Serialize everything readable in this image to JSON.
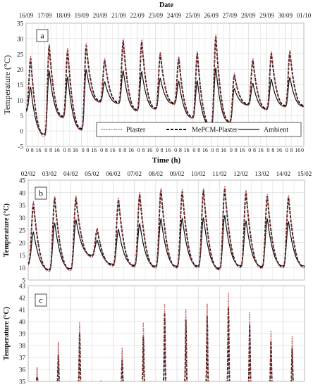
{
  "chart_data": [
    {
      "id": "a",
      "type": "line",
      "panel_label": "a",
      "title": "",
      "top_label": "Date",
      "xlabel": "Time (h)",
      "ylabel": "Temperature  (°C)",
      "ylim": [
        -5,
        35
      ],
      "yticks": [
        -5,
        0,
        5,
        10,
        15,
        20,
        25,
        30,
        35
      ],
      "date_ticks": [
        "16/09",
        "17/09",
        "18/09",
        "19/09",
        "20/09",
        "21/09",
        "22/09",
        "23/09",
        "24/09",
        "25/09",
        "26/09",
        "27/09",
        "28/09",
        "29/09",
        "30/09",
        "01/10"
      ],
      "hour_ticks": [
        "0",
        "8",
        "16"
      ],
      "grid": true,
      "legend_position": "lower-right",
      "series": [
        {
          "name": "Plaster",
          "style": "dotted",
          "color": "#c0504d",
          "daily_max": [
            24.2,
            28.3,
            26.9,
            28.4,
            23.5,
            29.9,
            29.7,
            25.7,
            24.2,
            25.9,
            31.3,
            18.8,
            23.6,
            25.9,
            26.3
          ],
          "daily_min": [
            6.2,
            -1.8,
            4.2,
            0.2,
            9.3,
            8.8,
            6.4,
            7.0,
            8.6,
            4.1,
            1.3,
            2.6,
            8.3,
            6.8,
            7.8
          ]
        },
        {
          "name": "MePCM-Plaster",
          "style": "dashed",
          "color": "#111111",
          "daily_max": [
            23.5,
            27.6,
            26.2,
            27.7,
            23.0,
            29.2,
            29.0,
            25.0,
            23.5,
            25.2,
            30.6,
            18.2,
            23.0,
            25.2,
            25.6
          ],
          "daily_min": [
            6.8,
            -1.2,
            4.8,
            0.8,
            9.8,
            9.3,
            6.9,
            7.5,
            9.1,
            4.6,
            1.8,
            3.1,
            8.8,
            7.3,
            8.3
          ]
        },
        {
          "name": "Ambient",
          "style": "solid",
          "color": "#111111",
          "daily_max": [
            14.2,
            19.5,
            17.6,
            19.9,
            16.0,
            19.6,
            19.3,
            17.1,
            16.2,
            16.3,
            20.5,
            13.8,
            15.5,
            16.8,
            17.4
          ],
          "daily_min": [
            6.5,
            -1.0,
            4.5,
            0.5,
            9.5,
            9.0,
            6.7,
            7.2,
            8.8,
            4.3,
            1.6,
            2.9,
            8.5,
            7.1,
            8.0
          ]
        }
      ]
    },
    {
      "id": "b",
      "type": "line",
      "panel_label": "b",
      "title": "",
      "xlabel": "",
      "ylabel": "Temperature (°C)",
      "ylim": [
        5,
        45
      ],
      "yticks": [
        5,
        10,
        15,
        20,
        25,
        30,
        35,
        40,
        45
      ],
      "date_ticks": [
        "02/02",
        "03/02",
        "04/02",
        "05/02",
        "06/02",
        "07/02",
        "08/02",
        "09/02",
        "10/02",
        "11/02",
        "12/02",
        "13/02",
        "14/02",
        "15/02"
      ],
      "grid": true,
      "series": [
        {
          "name": "Plaster",
          "style": "dotted",
          "color": "#c0504d",
          "daily_max": [
            36.5,
            38.6,
            38.8,
            25.9,
            38.0,
            40.2,
            41.8,
            41.2,
            41.7,
            42.6,
            41.0,
            39.3,
            38.9
          ],
          "daily_min": [
            11.0,
            8.5,
            8.8,
            14.2,
            10.6,
            10.2,
            9.8,
            9.8,
            9.9,
            9.0,
            10.0,
            9.7,
            9.9
          ]
        },
        {
          "name": "MePCM-Plaster",
          "style": "dashed",
          "color": "#111111",
          "daily_max": [
            35.5,
            37.8,
            37.9,
            25.2,
            37.2,
            39.3,
            40.9,
            40.3,
            40.9,
            41.6,
            40.0,
            38.5,
            38.1
          ],
          "daily_min": [
            11.5,
            9.0,
            9.3,
            14.6,
            11.0,
            10.6,
            10.2,
            10.2,
            10.3,
            9.4,
            10.4,
            10.1,
            10.3
          ]
        },
        {
          "name": "Ambient",
          "style": "solid",
          "color": "#111111",
          "daily_max": [
            24.2,
            27.8,
            29.2,
            21.0,
            25.3,
            27.6,
            29.6,
            29.8,
            29.9,
            30.8,
            28.7,
            29.5,
            28.4
          ],
          "daily_min": [
            12.0,
            9.3,
            9.6,
            15.0,
            11.4,
            11.0,
            10.6,
            10.6,
            10.7,
            9.8,
            10.8,
            10.5,
            10.7
          ]
        }
      ]
    },
    {
      "id": "c",
      "type": "line",
      "panel_label": "c",
      "title": "",
      "xlabel": "",
      "ylabel": "Temperature (°C)",
      "ylim": [
        35,
        43
      ],
      "yticks": [
        35,
        36,
        37,
        38,
        39,
        40,
        41,
        42,
        43
      ],
      "grid": true,
      "series": [
        {
          "name": "Plaster",
          "style": "dotted",
          "color": "#c0504d",
          "daily_max": [
            36.2,
            38.3,
            40.0,
            35.0,
            37.8,
            40.0,
            41.6,
            41.1,
            41.6,
            42.5,
            40.9,
            39.3,
            38.8
          ]
        },
        {
          "name": "MePCM-Plaster",
          "style": "dashed",
          "color": "#111111",
          "daily_max": [
            35.4,
            37.2,
            39.1,
            35.0,
            36.8,
            38.8,
            40.8,
            40.2,
            40.6,
            41.3,
            39.8,
            38.4,
            37.8
          ]
        }
      ]
    }
  ]
}
